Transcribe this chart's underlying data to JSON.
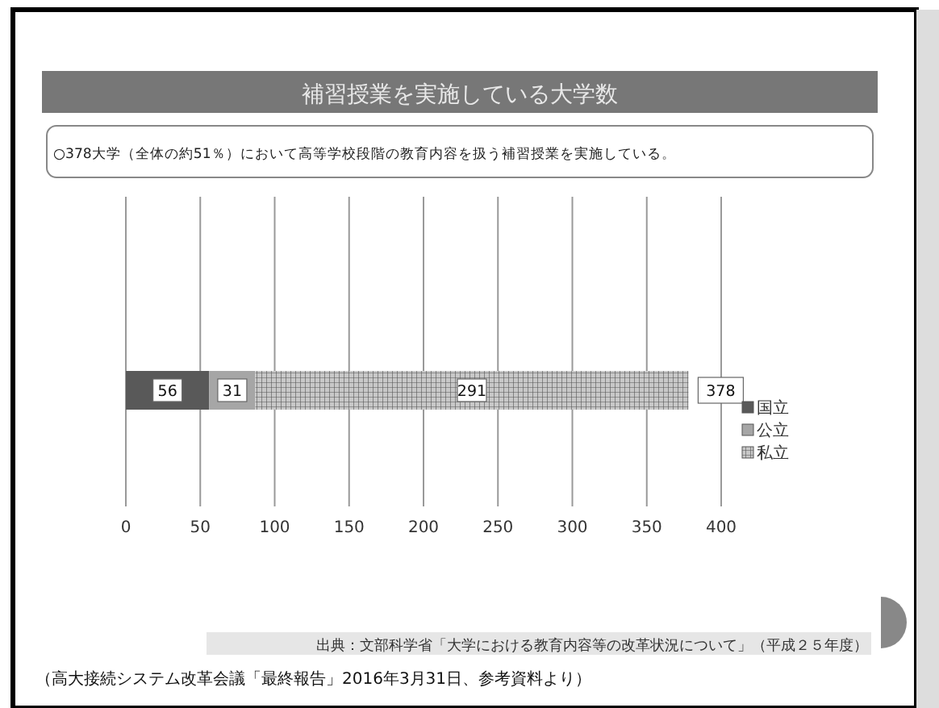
{
  "chart_data": {
    "type": "bar",
    "orientation": "horizontal",
    "stacked": true,
    "title": "補習授業を実施している大学数",
    "subtitle": "○378大学（全体の約51％）において高等学校段階の教育内容を扱う補習授業を実施している。",
    "categories": [
      null
    ],
    "series": [
      {
        "name": "国立",
        "color": "#595959",
        "values": [
          56
        ]
      },
      {
        "name": "公立",
        "color": "#a6a6a6",
        "values": [
          31
        ]
      },
      {
        "name": "私立",
        "color": "#c8c8c8",
        "values": [
          291
        ]
      }
    ],
    "xlim": [
      0,
      400
    ],
    "xticks": [
      0,
      50,
      100,
      150,
      200,
      250,
      300,
      350,
      400
    ],
    "grid": "x",
    "legend": "right",
    "data_labels": true,
    "totals": [
      "378"
    ],
    "annotations": [
      "出典：文部科学省「大学における教育内容等の改革状況について」（平成２５年度）",
      "（高大接続システム改革会議「最終報告」2016年3月31日、参考資料より）"
    ]
  }
}
